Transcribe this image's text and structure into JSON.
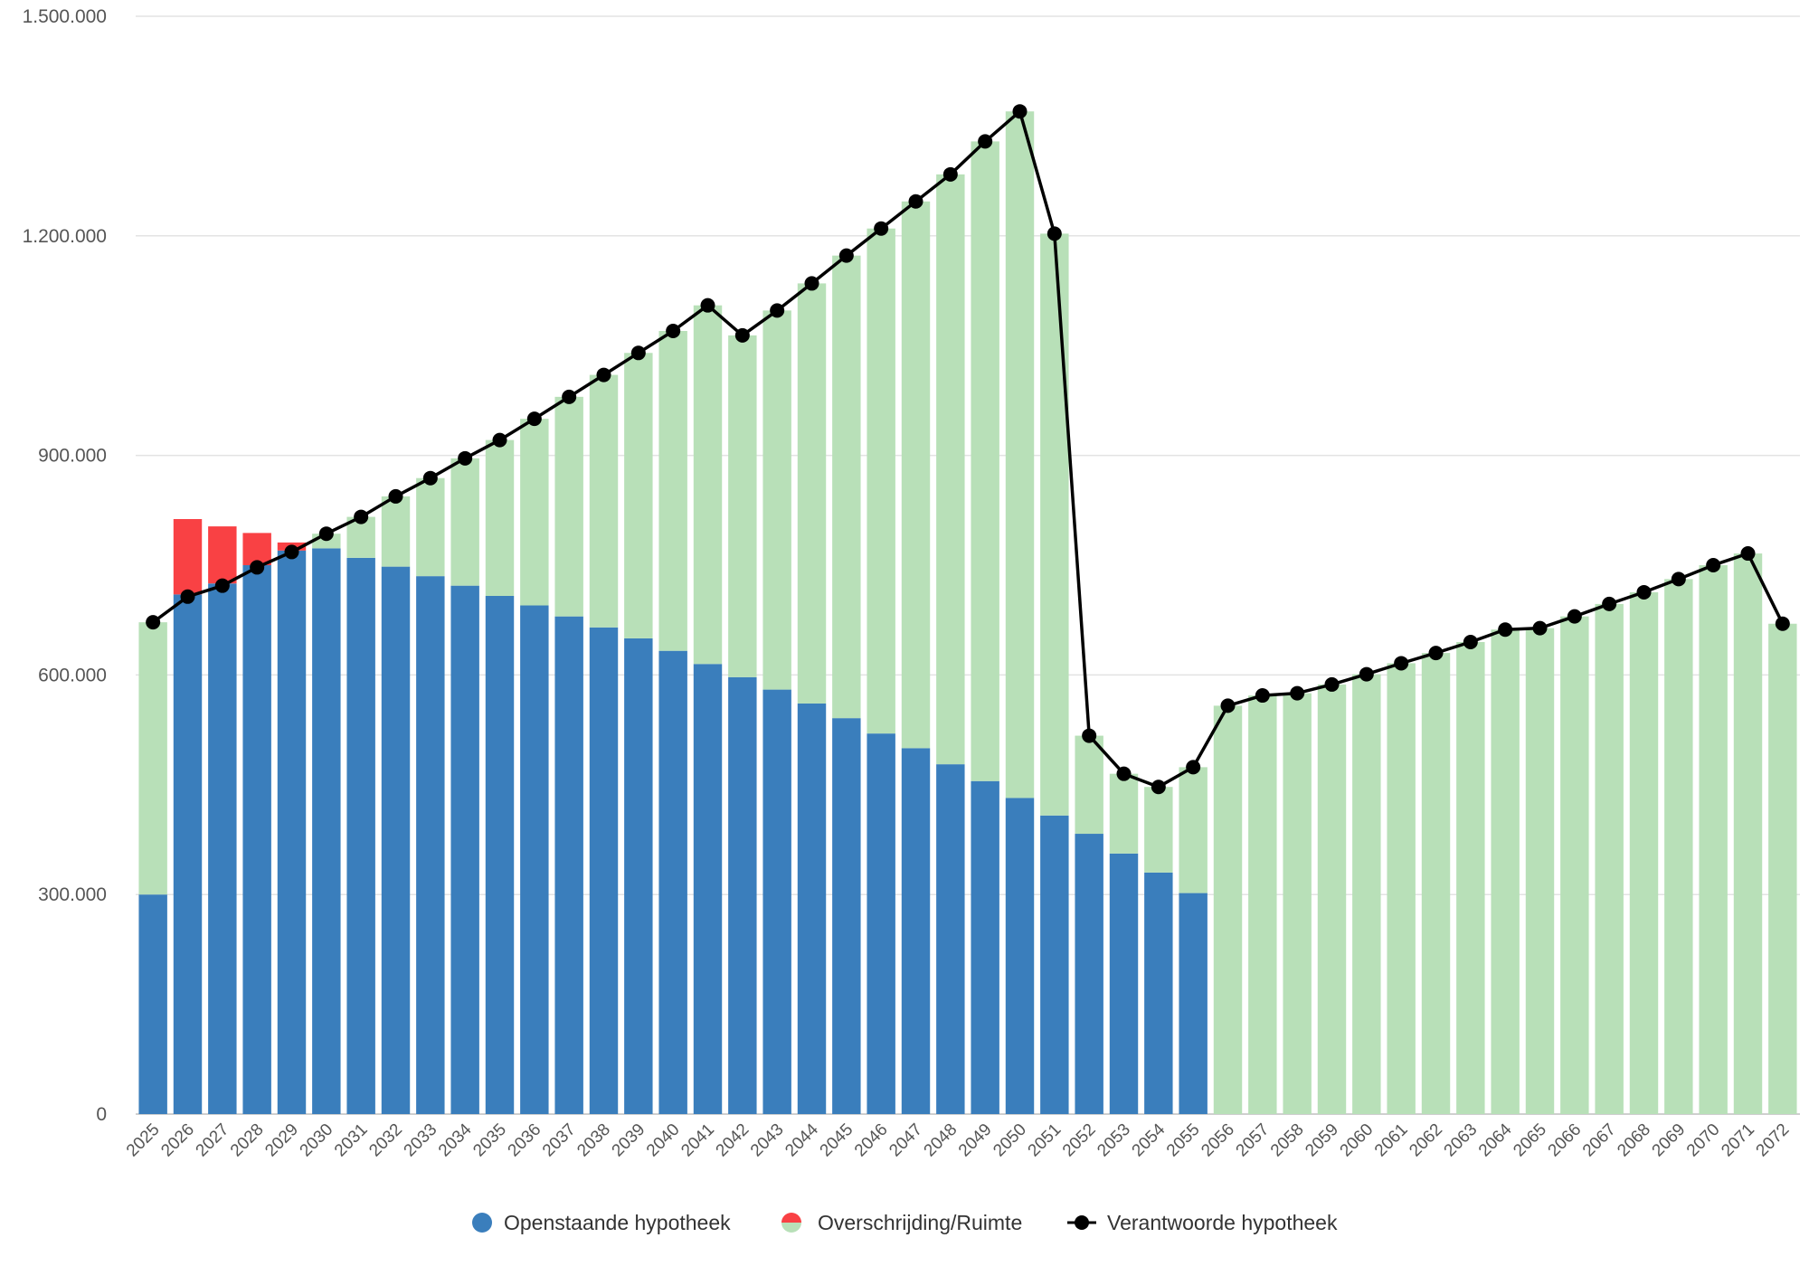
{
  "chart_data": {
    "type": "bar",
    "stacked": true,
    "grid": true,
    "legend_position": "bottom",
    "ylim": [
      0,
      1500000
    ],
    "yticks": [
      0,
      300000,
      600000,
      900000,
      1200000,
      1500000
    ],
    "ytick_labels": [
      "0",
      "300.000",
      "600.000",
      "900.000",
      "1.200.000",
      "1.500.000"
    ],
    "categories": [
      "2025",
      "2026",
      "2027",
      "2028",
      "2029",
      "2030",
      "2031",
      "2032",
      "2033",
      "2034",
      "2035",
      "2036",
      "2037",
      "2038",
      "2039",
      "2040",
      "2041",
      "2042",
      "2043",
      "2044",
      "2045",
      "2046",
      "2047",
      "2048",
      "2049",
      "2050",
      "2051",
      "2052",
      "2053",
      "2054",
      "2055",
      "2056",
      "2057",
      "2058",
      "2059",
      "2060",
      "2061",
      "2062",
      "2063",
      "2064",
      "2065",
      "2066",
      "2067",
      "2068",
      "2069",
      "2070",
      "2071",
      "2072"
    ],
    "series": [
      {
        "name": "Openstaande hypotheek",
        "type": "bar",
        "color": "#3a7ebc",
        "values": [
          300000,
          710000,
          725000,
          750000,
          770000,
          773000,
          760000,
          748000,
          735000,
          722000,
          708000,
          695000,
          680000,
          665000,
          650000,
          633000,
          615000,
          597000,
          580000,
          561000,
          541000,
          520000,
          500000,
          478000,
          455000,
          432000,
          408000,
          383000,
          356000,
          330000,
          302000,
          0,
          0,
          0,
          0,
          0,
          0,
          0,
          0,
          0,
          0,
          0,
          0,
          0,
          0,
          0,
          0,
          0
        ]
      },
      {
        "name": "Overschrijding/Ruimte",
        "type": "bar",
        "color_exceed": "#f94144",
        "color_room": "#b8e0b8",
        "values": [
          372000,
          103000,
          78000,
          44000,
          11000,
          20000,
          56000,
          96000,
          134000,
          174000,
          213000,
          255000,
          300000,
          345000,
          390000,
          437000,
          490000,
          467000,
          518000,
          574000,
          632000,
          690000,
          747000,
          806000,
          874000,
          938000,
          795000,
          134000,
          109000,
          117000,
          172000,
          558000,
          572000,
          575000,
          587000,
          601000,
          616000,
          630000,
          645000,
          662000,
          664000,
          680000,
          697000,
          713000,
          731000,
          750000,
          766000,
          670000
        ],
        "is_exceedance": [
          false,
          true,
          true,
          true,
          true,
          false,
          false,
          false,
          false,
          false,
          false,
          false,
          false,
          false,
          false,
          false,
          false,
          false,
          false,
          false,
          false,
          false,
          false,
          false,
          false,
          false,
          false,
          false,
          false,
          false,
          false,
          false,
          false,
          false,
          false,
          false,
          false,
          false,
          false,
          false,
          false,
          false,
          false,
          false,
          false,
          false,
          false,
          false
        ]
      },
      {
        "name": "Verantwoorde hypotheek",
        "type": "line",
        "color": "#000000",
        "values": [
          672000,
          707000,
          722000,
          747000,
          768000,
          793000,
          816000,
          844000,
          869000,
          896000,
          921000,
          950000,
          980000,
          1010000,
          1040000,
          1070000,
          1105000,
          1064000,
          1098000,
          1135000,
          1173000,
          1210000,
          1247000,
          1284000,
          1329000,
          1370000,
          1203000,
          517000,
          465000,
          447000,
          474000,
          558000,
          572000,
          575000,
          587000,
          601000,
          616000,
          630000,
          645000,
          662000,
          664000,
          680000,
          697000,
          713000,
          731000,
          750000,
          766000,
          670000
        ]
      }
    ]
  }
}
